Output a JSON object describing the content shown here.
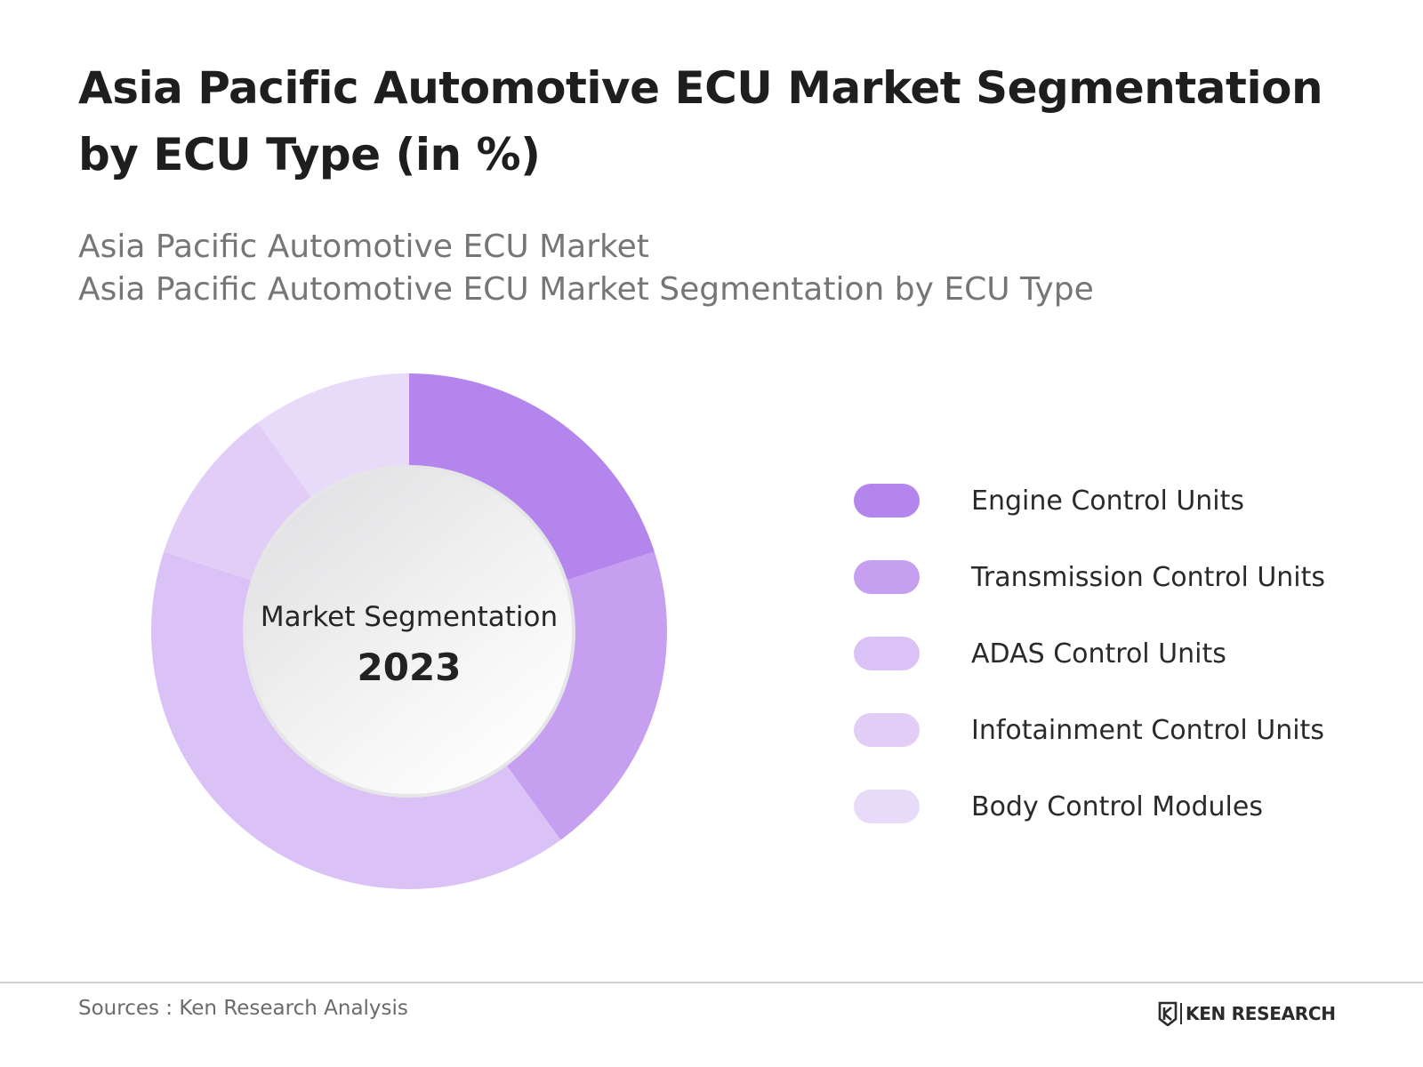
{
  "header": {
    "title": "Asia Pacific Automotive ECU Market Segmentation by ECU Type (in %)",
    "subtitle_lines": [
      "Asia Pacific Automotive ECU Market",
      "Asia Pacific Automotive ECU Market Segmentation by ECU Type"
    ]
  },
  "chart_data": {
    "type": "pie",
    "center_label": "Market Segmentation",
    "center_value": "2023",
    "categories": [
      "Engine Control Units",
      "Transmission Control Units",
      "ADAS Control Units",
      "Infotainment Control Units",
      "Body Control Modules"
    ],
    "values": [
      20,
      20,
      40,
      10,
      10
    ],
    "colors": [
      "#b485ec",
      "#c69ff0",
      "#dbc2f6",
      "#e2cdf7",
      "#e8daf9"
    ],
    "legend_placement": "right"
  },
  "footer": {
    "source": "Sources : Ken Research Analysis",
    "brand": "KEN RESEARCH",
    "brand_icon": "ken-research-logo-icon"
  }
}
